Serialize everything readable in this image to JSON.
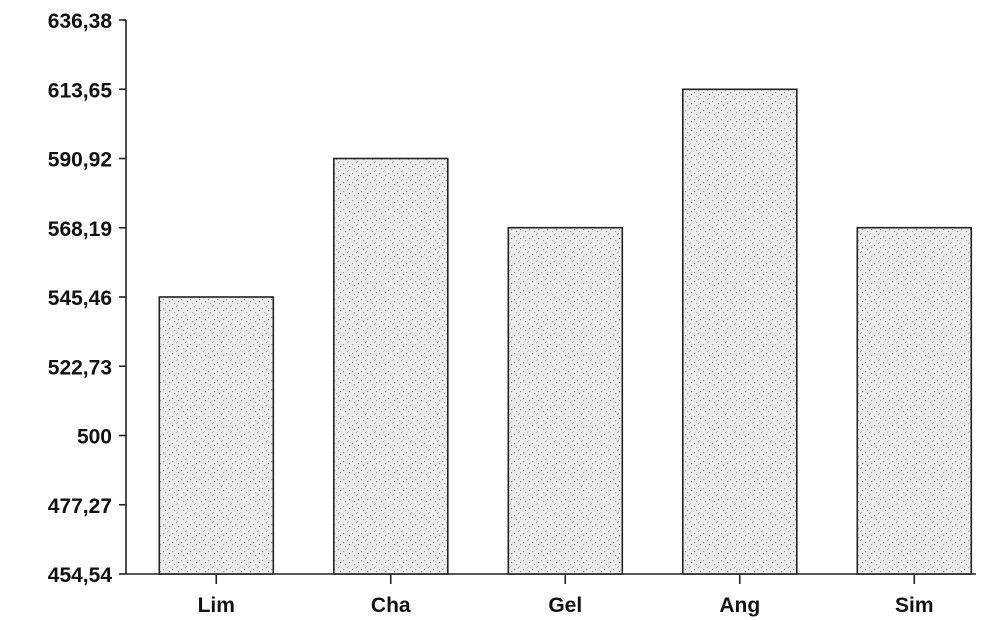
{
  "chart_data": {
    "type": "bar",
    "title": "",
    "xlabel": "",
    "ylabel": "",
    "categories": [
      "Lim",
      "Cha",
      "Gel",
      "Ang",
      "Sim"
    ],
    "values": [
      545.46,
      590.92,
      568.19,
      613.65,
      568.19
    ],
    "ylim": [
      454.54,
      636.38
    ],
    "yticks": [
      454.54,
      477.27,
      500,
      522.73,
      545.46,
      568.19,
      590.92,
      613.65,
      636.38
    ],
    "ytick_labels": [
      "454,54",
      "477,27",
      "500",
      "522,73",
      "545,46",
      "568,19",
      "590,92",
      "613,65",
      "636,38"
    ],
    "grid": false,
    "legend": "none",
    "bar_color": "#d9d9d9",
    "bar_texture_color": "#9a9a9a",
    "axis_color": "#222222"
  }
}
